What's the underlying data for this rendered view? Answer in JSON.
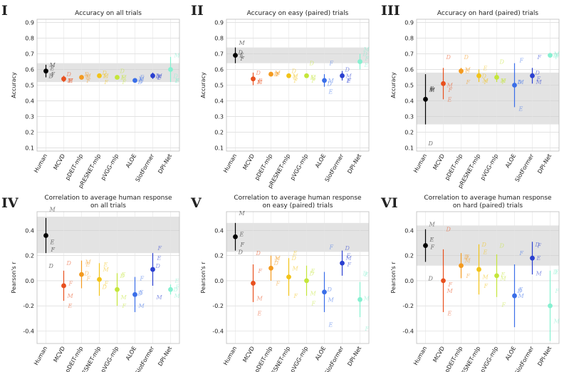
{
  "chart_data": [
    {
      "type": "dotplot",
      "panel": "I",
      "title": [
        "Accuracy on all trials"
      ],
      "ylabel": "Accuracy",
      "categories": [
        "Human",
        "MCVD",
        "pDEIT-mlp",
        "pRESNET-mlp",
        "pVGG-mlp",
        "ALOE",
        "SlotFormer",
        "DPI-Net"
      ],
      "colors": [
        "#000000",
        "#e8501e",
        "#f39a1f",
        "#f2c318",
        "#c4e63a",
        "#3a6ee8",
        "#2a3fd0",
        "#86f0d0"
      ],
      "values": [
        0.59,
        0.54,
        0.55,
        0.56,
        0.55,
        0.53,
        0.56,
        0.6
      ],
      "errors": [
        0.04,
        0.02,
        0.01,
        0.01,
        0.01,
        0.01,
        0.02,
        0.08
      ],
      "band": [
        0.52,
        0.64
      ],
      "series": [
        {
          "name": "M",
          "values": [
            0.63,
            0.53,
            0.56,
            0.56,
            0.55,
            0.54,
            0.56,
            0.69
          ]
        },
        {
          "name": "E",
          "values": [
            0.61,
            0.53,
            0.55,
            0.56,
            0.55,
            0.53,
            0.55,
            0.53
          ]
        },
        {
          "name": "F",
          "values": [
            0.57,
            0.53,
            0.53,
            0.52,
            0.52,
            0.55,
            0.55,
            0.53
          ]
        },
        {
          "name": "D",
          "values": [
            0.56,
            0.57,
            0.57,
            0.58,
            0.59,
            0.52,
            0.56,
            0.56
          ]
        }
      ],
      "ylim": [
        0.08,
        0.92
      ],
      "yticks": [
        0.1,
        0.2,
        0.3,
        0.4,
        0.5,
        0.6,
        0.7,
        0.8,
        0.9
      ],
      "grid": true
    },
    {
      "type": "dotplot",
      "panel": "II",
      "title": [
        "Accuracy on easy (paired) trials"
      ],
      "ylabel": "Accuracy",
      "categories": [
        "Human",
        "MCVD",
        "pDEIT-mlp",
        "pRESNET-mlp",
        "pVGG-mlp",
        "ALOE",
        "SlotFormer",
        "DPI-Net"
      ],
      "colors": [
        "#000000",
        "#e8501e",
        "#f39a1f",
        "#f2c318",
        "#c4e63a",
        "#3a6ee8",
        "#2a3fd0",
        "#86f0d0"
      ],
      "values": [
        0.69,
        0.54,
        0.57,
        0.56,
        0.56,
        0.53,
        0.56,
        0.65
      ],
      "errors": [
        0.05,
        0.04,
        0.01,
        0.01,
        0.01,
        0.04,
        0.03,
        0.05
      ],
      "band": [
        0.64,
        0.74
      ],
      "series": [
        {
          "name": "M",
          "values": [
            0.77,
            0.52,
            0.58,
            0.56,
            0.55,
            0.53,
            0.56,
            0.73
          ]
        },
        {
          "name": "E",
          "values": [
            0.69,
            0.52,
            0.57,
            0.55,
            0.55,
            0.46,
            0.53,
            0.63
          ]
        },
        {
          "name": "F",
          "values": [
            0.67,
            0.53,
            0.57,
            0.53,
            0.53,
            0.64,
            0.53,
            0.67
          ]
        },
        {
          "name": "D",
          "values": [
            0.71,
            0.58,
            0.57,
            0.59,
            0.64,
            0.51,
            0.6,
            0.7
          ]
        }
      ],
      "ylim": [
        0.08,
        0.92
      ],
      "yticks": [
        0.1,
        0.2,
        0.3,
        0.4,
        0.5,
        0.6,
        0.7,
        0.8,
        0.9
      ],
      "grid": true
    },
    {
      "type": "dotplot",
      "panel": "III",
      "title": [
        "Accuracy on hard (paired) trials"
      ],
      "ylabel": "Accuracy",
      "categories": [
        "Human",
        "MCVD",
        "pDEIT-mlp",
        "pRESNET-mlp",
        "pVGG-mlp",
        "ALOE",
        "SlotFormer",
        "DPI-Net"
      ],
      "colors": [
        "#000000",
        "#e8501e",
        "#f39a1f",
        "#f2c318",
        "#c4e63a",
        "#3a6ee8",
        "#2a3fd0",
        "#86f0d0"
      ],
      "values": [
        0.41,
        0.51,
        0.59,
        0.56,
        0.55,
        0.5,
        0.56,
        0.69
      ],
      "errors": [
        0.16,
        0.1,
        0.02,
        0.04,
        0.03,
        0.14,
        0.05,
        0.01
      ],
      "band": [
        0.25,
        0.58
      ],
      "series": [
        {
          "name": "M",
          "values": [
            0.47,
            0.5,
            0.6,
            0.53,
            0.53,
            0.52,
            0.52,
            0.7
          ]
        },
        {
          "name": "E",
          "values": [
            0.48,
            0.41,
            0.59,
            0.61,
            0.53,
            0.35,
            0.54,
            0.69
          ]
        },
        {
          "name": "F",
          "values": [
            0.47,
            0.47,
            0.52,
            0.52,
            0.52,
            0.66,
            0.68,
            0.68
          ]
        },
        {
          "name": "D",
          "values": [
            0.13,
            0.68,
            0.68,
            0.56,
            0.65,
            0.52,
            0.58,
            0.69
          ]
        }
      ],
      "ylim": [
        0.08,
        0.92
      ],
      "yticks": [
        0.1,
        0.2,
        0.3,
        0.4,
        0.5,
        0.6,
        0.7,
        0.8,
        0.9
      ],
      "grid": true
    },
    {
      "type": "dotplot",
      "panel": "IV",
      "title": [
        "Correlation to average human response",
        "on all trials"
      ],
      "ylabel": "Pearson's r",
      "categories": [
        "Human",
        "MCVD",
        "pDEIT-mlp",
        "pRESNET-mlp",
        "pVGG-mlp",
        "ALOE",
        "SlotFormer",
        "DPI-Net"
      ],
      "colors": [
        "#000000",
        "#e8501e",
        "#f39a1f",
        "#f2c318",
        "#c4e63a",
        "#3a6ee8",
        "#2a3fd0",
        "#86f0d0"
      ],
      "values": [
        0.36,
        -0.04,
        0.05,
        0.01,
        -0.07,
        -0.11,
        0.09,
        -0.07
      ],
      "errors": [
        0.14,
        0.12,
        0.11,
        0.13,
        0.13,
        0.14,
        0.13,
        0.04
      ],
      "band": [
        0.22,
        0.51
      ],
      "series": [
        {
          "name": "M",
          "values": [
            0.57,
            -0.12,
            0.15,
            0.09,
            -0.13,
            -0.2,
            -0.13,
            -0.12
          ]
        },
        {
          "name": "E",
          "values": [
            0.31,
            -0.2,
            0.13,
            0.13,
            0.05,
            -0.09,
            0.18,
            0.0
          ]
        },
        {
          "name": "F",
          "values": [
            0.25,
            -0.02,
            0.02,
            -0.02,
            -0.2,
            0.02,
            0.26,
            -0.05
          ]
        },
        {
          "name": "D",
          "values": [
            0.12,
            0.14,
            0.06,
            -0.05,
            0.04,
            -0.1,
            0.12,
            -0.07
          ]
        }
      ],
      "ylim": [
        -0.5,
        0.55
      ],
      "yticks": [
        -0.4,
        -0.2,
        {
          "value": 0,
          "label": "0.0"
        },
        0.2,
        0.4
      ],
      "grid": true
    },
    {
      "type": "dotplot",
      "panel": "V",
      "title": [
        "Correlation to average human response",
        "on easy (paired) trials"
      ],
      "ylabel": "Pearson's r",
      "categories": [
        "Human",
        "MCVD",
        "pDEIT-mlp",
        "pRESNET-mlp",
        "pVGG-mlp",
        "ALOE",
        "SlotFormer",
        "DPI-Net"
      ],
      "colors": [
        "#000000",
        "#e8501e",
        "#f39a1f",
        "#f2c318",
        "#c4e63a",
        "#3a6ee8",
        "#2a3fd0",
        "#86f0d0"
      ],
      "values": [
        0.35,
        -0.02,
        0.1,
        0.03,
        0.0,
        -0.09,
        0.14,
        -0.15
      ],
      "errors": [
        0.11,
        0.15,
        0.1,
        0.15,
        0.12,
        0.16,
        0.1,
        0.14
      ],
      "band": [
        0.23,
        0.46
      ],
      "series": [
        {
          "name": "M",
          "values": [
            0.54,
            -0.14,
            0.18,
            0.1,
            -0.1,
            -0.15,
            0.18,
            -0.14
          ]
        },
        {
          "name": "E",
          "values": [
            0.37,
            -0.26,
            0.17,
            0.22,
            0.08,
            -0.35,
            0.2,
            0.05
          ]
        },
        {
          "name": "F",
          "values": [
            0.29,
            0.08,
            -0.02,
            -0.12,
            -0.18,
            0.27,
            0.13,
            -0.38
          ]
        },
        {
          "name": "D",
          "values": [
            0.23,
            0.22,
            0.14,
            0.18,
            0.06,
            -0.07,
            0.26,
            0.06
          ]
        }
      ],
      "ylim": [
        -0.5,
        0.55
      ],
      "yticks": [
        -0.4,
        -0.2,
        {
          "value": 0,
          "label": "0.0"
        },
        0.2,
        0.4
      ],
      "grid": true
    },
    {
      "type": "dotplot",
      "panel": "VI",
      "title": [
        "Correlation to average human response",
        "on hard (paired) trials"
      ],
      "ylabel": "Pearson's r",
      "categories": [
        "Human",
        "MCVD",
        "pDEIT-mlp",
        "pRESNET-mlp",
        "pVGG-mlp",
        "ALOE",
        "SlotFormer",
        "DPI-Net"
      ],
      "colors": [
        "#000000",
        "#e8501e",
        "#f39a1f",
        "#f2c318",
        "#c4e63a",
        "#3a6ee8",
        "#2a3fd0",
        "#86f0d0"
      ],
      "values": [
        0.28,
        0.0,
        0.12,
        0.09,
        0.04,
        -0.12,
        0.18,
        -0.2
      ],
      "errors": [
        0.13,
        0.25,
        0.1,
        0.2,
        0.17,
        0.25,
        0.13,
        0.28
      ],
      "band": [
        0.12,
        0.44
      ],
      "series": [
        {
          "name": "M",
          "values": [
            0.45,
            -0.08,
            0.16,
            0.03,
            0.02,
            -0.12,
            0.06,
            -0.32
          ]
        },
        {
          "name": "E",
          "values": [
            0.33,
            -0.26,
            0.19,
            0.23,
            0.05,
            -0.07,
            0.18,
            0.07
          ]
        },
        {
          "name": "F",
          "values": [
            0.27,
            -0.03,
            0.04,
            -0.04,
            -0.19,
            0.22,
            0.28,
            -0.08
          ]
        },
        {
          "name": "D",
          "values": [
            0.02,
            0.41,
            0.19,
            0.29,
            0.28,
            -0.08,
            0.29,
            0.07
          ]
        }
      ],
      "ylim": [
        -0.5,
        0.55
      ],
      "yticks": [
        -0.4,
        -0.2,
        {
          "value": 0,
          "label": "0.0"
        },
        0.2,
        0.4
      ],
      "grid": true
    }
  ]
}
